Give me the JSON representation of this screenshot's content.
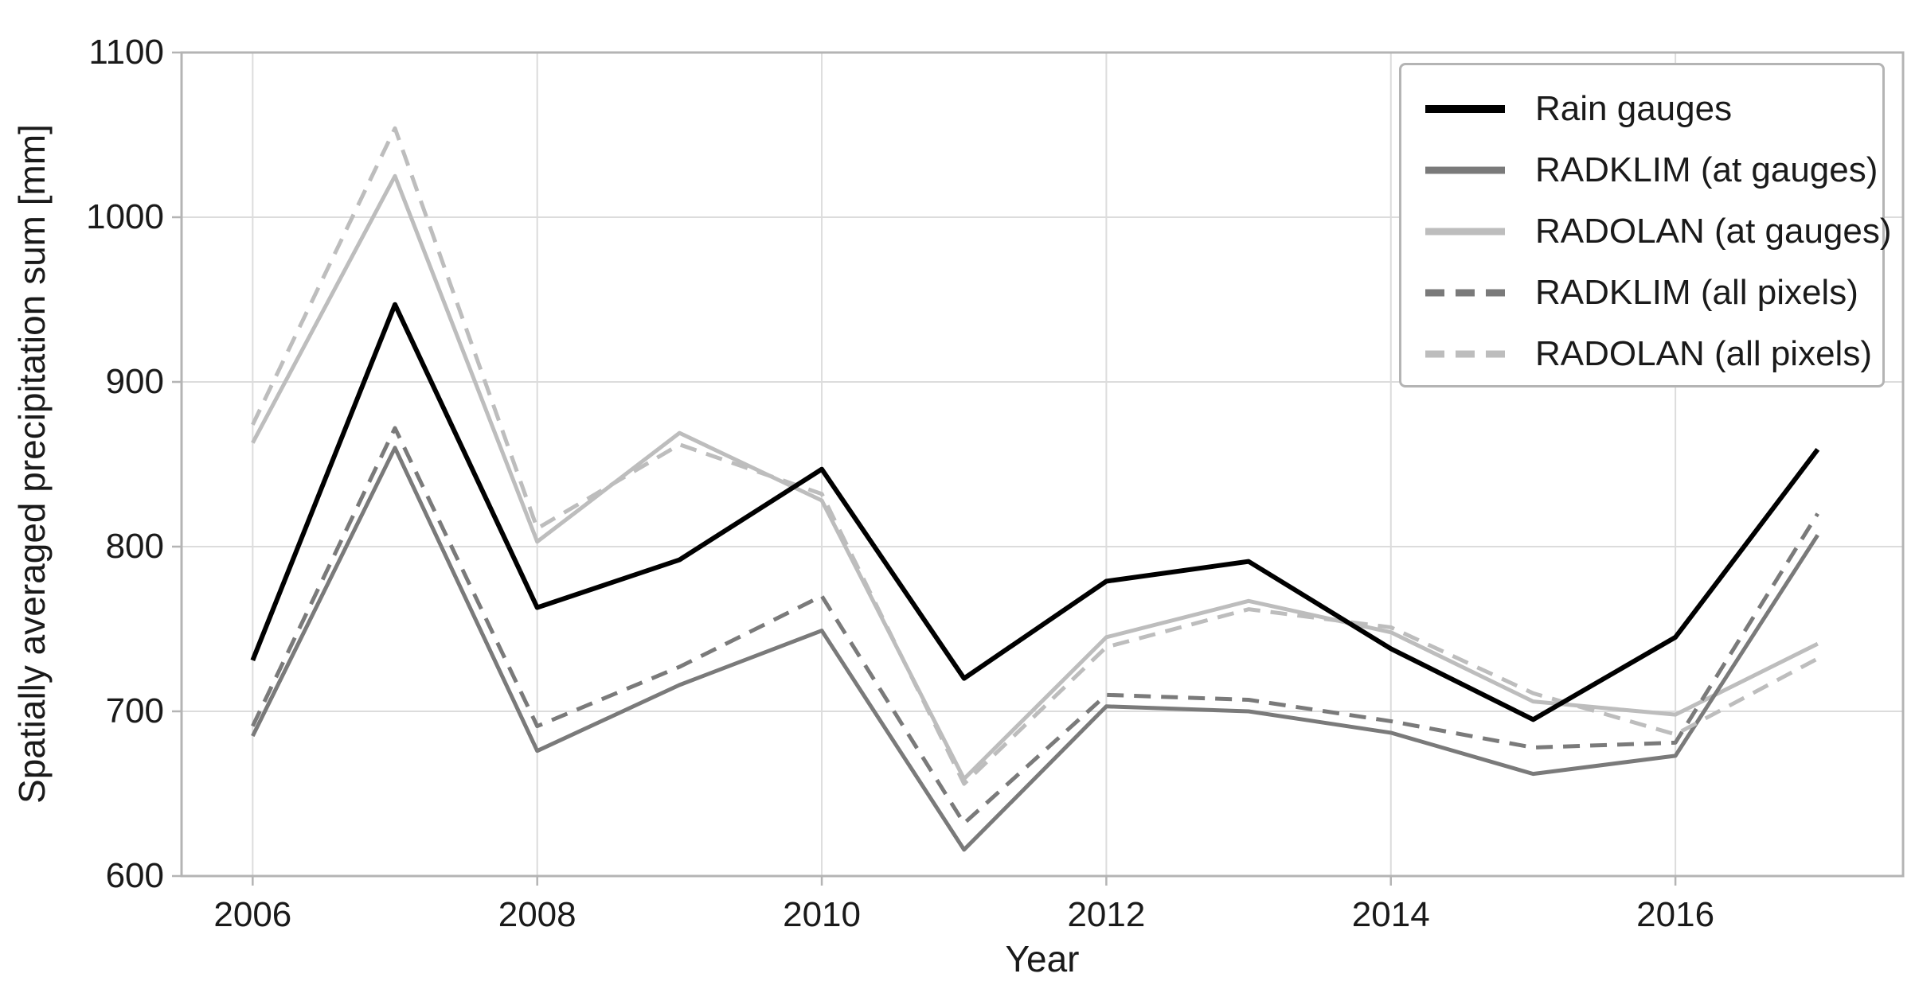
{
  "chart_data": {
    "type": "line",
    "title": "",
    "xlabel": "Year",
    "ylabel": "Spatially averaged precipitation sum [mm]",
    "x": [
      2006,
      2007,
      2008,
      2009,
      2010,
      2011,
      2012,
      2013,
      2014,
      2015,
      2016,
      2017
    ],
    "xlim": [
      2005.5,
      2017.6
    ],
    "ylim": [
      600,
      1100
    ],
    "grid": true,
    "legend_position": "upper right",
    "xticks": {
      "values": [
        2006,
        2008,
        2010,
        2012,
        2014,
        2016
      ],
      "labels": [
        "2006",
        "2008",
        "2010",
        "2012",
        "2014",
        "2016"
      ]
    },
    "yticks": {
      "values": [
        600,
        700,
        800,
        900,
        1000,
        1100
      ],
      "labels": [
        "600",
        "700",
        "800",
        "900",
        "1000",
        "1100"
      ]
    },
    "series": [
      {
        "name": "Rain gauges",
        "color": "#000000",
        "style": "solid",
        "width": 6,
        "values": [
          731,
          947,
          763,
          792,
          847,
          720,
          779,
          791,
          738,
          695,
          745,
          859
        ]
      },
      {
        "name": "RADKLIM (at gauges)",
        "color": "#7a7a7a",
        "style": "solid",
        "width": 5,
        "values": [
          685,
          860,
          676,
          716,
          749,
          616,
          703,
          700,
          687,
          662,
          673,
          807
        ]
      },
      {
        "name": "RADOLAN (at gauges)",
        "color": "#bdbdbd",
        "style": "solid",
        "width": 5,
        "values": [
          863,
          1025,
          803,
          869,
          828,
          659,
          745,
          767,
          748,
          706,
          698,
          741
        ]
      },
      {
        "name": "RADKLIM (all pixels)",
        "color": "#7a7a7a",
        "style": "dashed",
        "width": 5,
        "values": [
          691,
          872,
          691,
          727,
          770,
          632,
          710,
          707,
          694,
          678,
          681,
          820
        ]
      },
      {
        "name": "RADOLAN (all pixels)",
        "color": "#bdbdbd",
        "style": "dashed",
        "width": 5,
        "values": [
          874,
          1054,
          811,
          862,
          832,
          656,
          739,
          762,
          751,
          711,
          686,
          732
        ]
      }
    ],
    "colors": {
      "background": "#ffffff",
      "grid": "#dcdcdc",
      "spine": "#b4b4b4",
      "tick": "#b4b4b4",
      "text": "#1a1a1a"
    }
  }
}
